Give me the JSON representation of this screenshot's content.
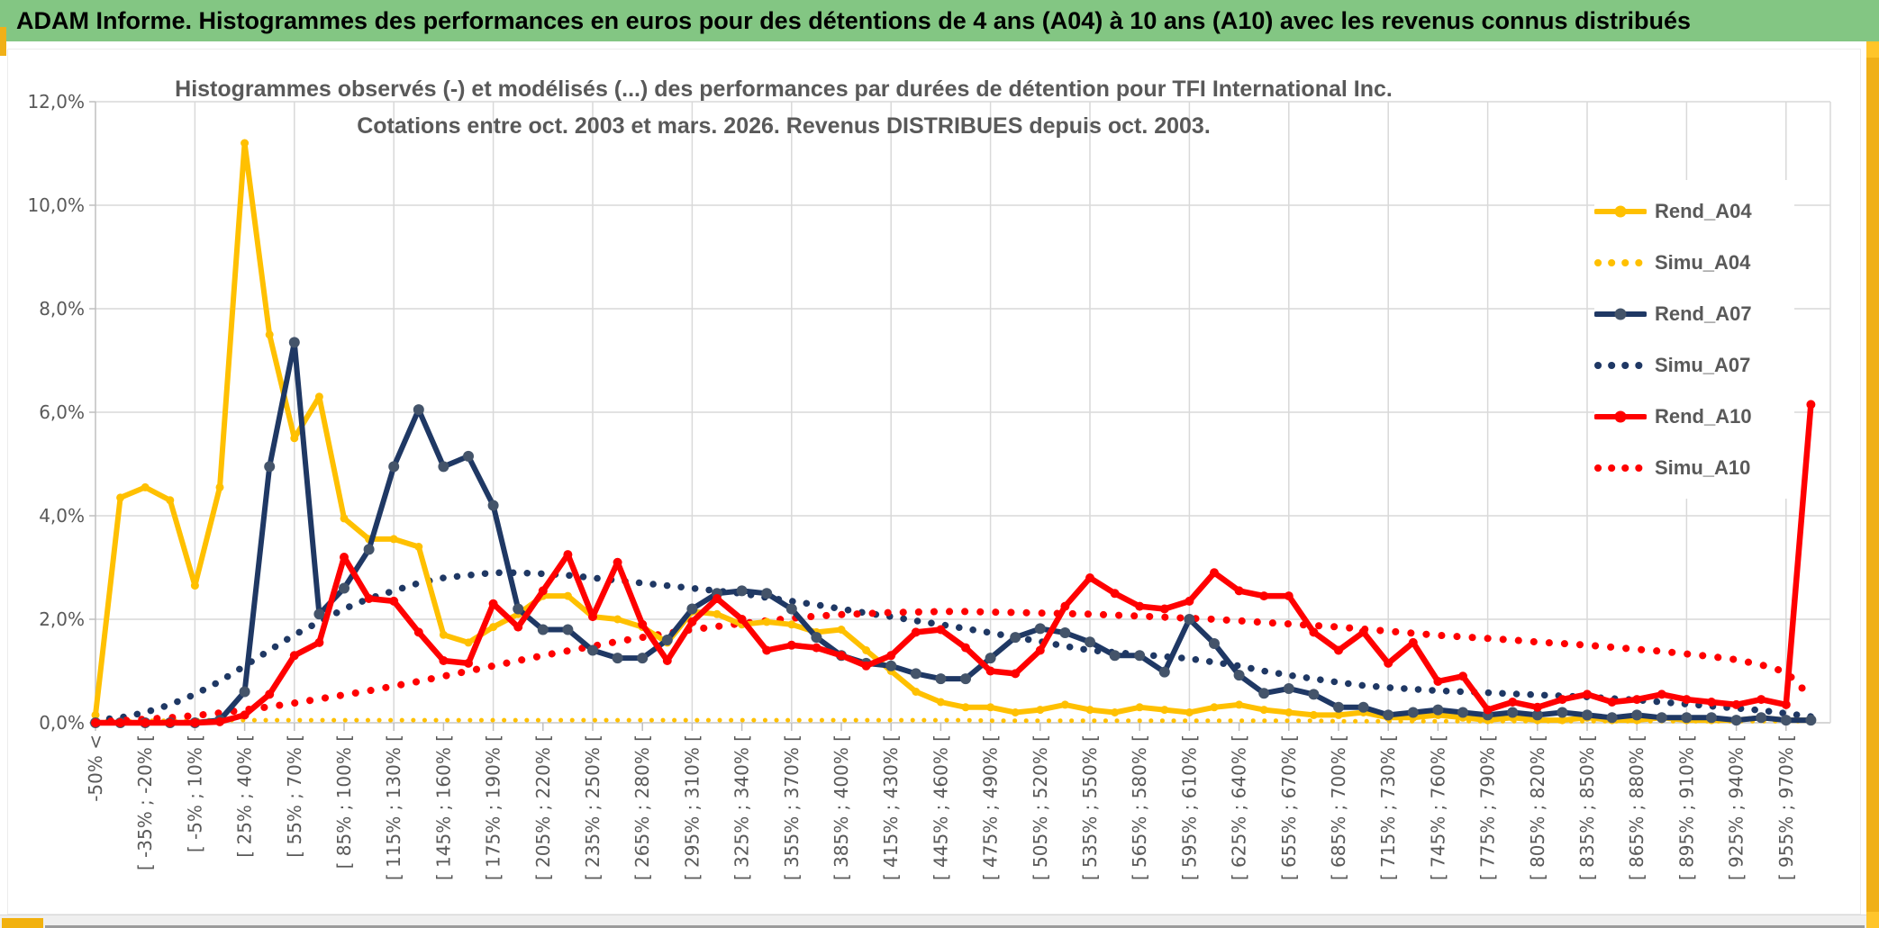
{
  "header": {
    "title": "ADAM Informe. Histogrammes des performances en euros pour des détentions de 4 ans (A04) à 10 ans (A10) avec les revenus connus distribués"
  },
  "colors": {
    "header_bg": "#83C683",
    "accent_gold": "#F0B018",
    "text_gray": "#595959",
    "gridline": "#D9D9D9",
    "axis": "#BFBFBF",
    "series_a04": "#FFC000",
    "series_a07": "#1F3864",
    "series_a07_marker": "#44546A",
    "series_a10": "#FF0000"
  },
  "chart_data": {
    "type": "line",
    "title": "Histogrammes observés (-) et modélisés (...) des performances par durées de détention pour TFI International Inc.",
    "subtitle": "Cotations entre oct. 2003 et mars. 2026. Revenus DISTRIBUES depuis oct. 2003.",
    "xlabel": "",
    "ylabel": "",
    "ylim": [
      0,
      12
    ],
    "grid": true,
    "legend_position": "right",
    "y_tick_labels": [
      "0,0%",
      "2,0%",
      "4,0%",
      "6,0%",
      "8,0%",
      "10,0%",
      "12,0%"
    ],
    "n_bins": 70,
    "x_label_every": 2,
    "x_tick_labels": [
      "-50% <",
      "[ -35% ; -20% [",
      "[ -5% ; 10% [",
      "[ 25% ; 40% [",
      "[ 55% ; 70% [",
      "[ 85% ; 100% [",
      "[ 115% ; 130% [",
      "[ 145% ; 160% [",
      "[ 175% ; 190% [",
      "[ 205% ; 220% [",
      "[ 235% ; 250% [",
      "[ 265% ; 280% [",
      "[ 295% ; 310% [",
      "[ 325% ; 340% [",
      "[ 355% ; 370% [",
      "[ 385% ; 400% [",
      "[ 415% ; 430% [",
      "[ 445% ; 460% [",
      "[ 475% ; 490% [",
      "[ 505% ; 520% [",
      "[ 535% ; 550% [",
      "[ 565% ; 580% [",
      "[ 595% ; 610% [",
      "[ 625% ; 640% [",
      "[ 655% ; 670% [",
      "[ 685% ; 700% [",
      "[ 715% ; 730% [",
      "[ 745% ; 760% [",
      "[ 775% ; 790% [",
      "[ 805% ; 820% [",
      "[ 835% ; 850% [",
      "[ 865% ; 880% [",
      "[ 895% ; 910% [",
      "[ 925% ; 940% [",
      "[ 955% ; 970% ["
    ],
    "series": [
      {
        "name": "Rend_A04",
        "style": "solid",
        "color": "#FFC000",
        "marker_color": "#FFC000",
        "values": [
          0.15,
          4.35,
          4.55,
          4.3,
          2.65,
          4.55,
          11.2,
          7.5,
          5.5,
          6.3,
          3.95,
          3.55,
          3.55,
          3.4,
          1.7,
          1.55,
          1.85,
          2.1,
          2.45,
          2.45,
          2.05,
          2.0,
          1.85,
          1.55,
          2.15,
          2.1,
          1.9,
          1.95,
          1.9,
          1.75,
          1.8,
          1.4,
          1.0,
          0.6,
          0.4,
          0.3,
          0.3,
          0.2,
          0.25,
          0.35,
          0.25,
          0.2,
          0.3,
          0.25,
          0.2,
          0.3,
          0.35,
          0.25,
          0.2,
          0.15,
          0.15,
          0.2,
          0.1,
          0.1,
          0.15,
          0.1,
          0.05,
          0.1,
          0.05,
          0.05,
          0.1,
          0.05,
          0.05,
          0.1,
          0.05,
          0.05,
          0.05,
          0.1,
          0.05,
          0.05
        ]
      },
      {
        "name": "Simu_A04",
        "style": "dotted",
        "color": "#FFC000",
        "marker_color": "#FFC000",
        "values": [
          0.03,
          0.03,
          0.04,
          0.04,
          0.05,
          0.05,
          0.05,
          0.05,
          0.05,
          0.05,
          0.05,
          0.05,
          0.05,
          0.05,
          0.05,
          0.05,
          0.05,
          0.05,
          0.05,
          0.05,
          0.05,
          0.05,
          0.05,
          0.05,
          0.05,
          0.05,
          0.05,
          0.05,
          0.05,
          0.05,
          0.05,
          0.05,
          0.05,
          0.05,
          0.05,
          0.05,
          0.04,
          0.04,
          0.04,
          0.04,
          0.04,
          0.04,
          0.04,
          0.04,
          0.04,
          0.04,
          0.04,
          0.04,
          0.04,
          0.04,
          0.03,
          0.03,
          0.03,
          0.03,
          0.03,
          0.03,
          0.03,
          0.03,
          0.03,
          0.03,
          0.03,
          0.03,
          0.03,
          0.03,
          0.03,
          0.03,
          0.03,
          0.03,
          0.03,
          0.03
        ]
      },
      {
        "name": "Rend_A07",
        "style": "solid",
        "color": "#1F3864",
        "marker_color": "#44546A",
        "values": [
          0,
          0,
          0,
          0,
          0,
          0.05,
          0.6,
          4.95,
          7.35,
          2.1,
          2.6,
          3.35,
          4.95,
          6.05,
          4.95,
          5.15,
          4.2,
          2.2,
          1.8,
          1.8,
          1.4,
          1.25,
          1.25,
          1.6,
          2.2,
          2.5,
          2.55,
          2.5,
          2.2,
          1.65,
          1.3,
          1.15,
          1.1,
          0.95,
          0.85,
          0.85,
          1.25,
          1.65,
          1.82,
          1.74,
          1.56,
          1.3,
          1.3,
          0.98,
          2.0,
          1.53,
          0.92,
          0.57,
          0.66,
          0.55,
          0.3,
          0.3,
          0.15,
          0.2,
          0.25,
          0.2,
          0.15,
          0.2,
          0.15,
          0.2,
          0.15,
          0.1,
          0.15,
          0.1,
          0.1,
          0.1,
          0.05,
          0.1,
          0.05,
          0.05
        ]
      },
      {
        "name": "Simu_A07",
        "style": "dotted",
        "color": "#1F3864",
        "marker_color": "#1F3864",
        "values": [
          0.05,
          0.1,
          0.2,
          0.35,
          0.55,
          0.8,
          1.1,
          1.4,
          1.7,
          1.95,
          2.2,
          2.4,
          2.55,
          2.7,
          2.8,
          2.85,
          2.9,
          2.9,
          2.88,
          2.85,
          2.8,
          2.75,
          2.7,
          2.65,
          2.6,
          2.55,
          2.5,
          2.42,
          2.35,
          2.28,
          2.2,
          2.12,
          2.05,
          1.97,
          1.9,
          1.82,
          1.74,
          1.65,
          1.57,
          1.48,
          1.4,
          1.36,
          1.32,
          1.28,
          1.24,
          1.17,
          1.1,
          1.0,
          0.92,
          0.85,
          0.78,
          0.72,
          0.68,
          0.65,
          0.62,
          0.6,
          0.58,
          0.56,
          0.54,
          0.52,
          0.5,
          0.47,
          0.44,
          0.4,
          0.36,
          0.32,
          0.28,
          0.24,
          0.18,
          0.12
        ]
      },
      {
        "name": "Rend_A10",
        "style": "solid",
        "color": "#FF0000",
        "marker_color": "#FF0000",
        "values": [
          0,
          0,
          0,
          0,
          0,
          0.02,
          0.15,
          0.55,
          1.3,
          1.55,
          3.2,
          2.4,
          2.35,
          1.75,
          1.2,
          1.15,
          2.3,
          1.85,
          2.55,
          3.25,
          2.05,
          3.1,
          1.9,
          1.2,
          1.95,
          2.4,
          2.0,
          1.4,
          1.5,
          1.45,
          1.3,
          1.1,
          1.3,
          1.75,
          1.8,
          1.45,
          1.0,
          0.95,
          1.4,
          2.25,
          2.8,
          2.5,
          2.25,
          2.2,
          2.35,
          2.9,
          2.55,
          2.45,
          2.45,
          1.75,
          1.4,
          1.75,
          1.15,
          1.55,
          0.8,
          0.9,
          0.25,
          0.4,
          0.3,
          0.45,
          0.55,
          0.4,
          0.45,
          0.55,
          0.45,
          0.4,
          0.35,
          0.45,
          0.35,
          6.15
        ]
      },
      {
        "name": "Simu_A10",
        "style": "dotted",
        "color": "#FF0000",
        "marker_color": "#FF0000",
        "values": [
          0.02,
          0.04,
          0.07,
          0.1,
          0.14,
          0.19,
          0.25,
          0.31,
          0.38,
          0.46,
          0.54,
          0.62,
          0.71,
          0.8,
          0.9,
          1.0,
          1.1,
          1.2,
          1.3,
          1.39,
          1.48,
          1.57,
          1.65,
          1.73,
          1.8,
          1.86,
          1.92,
          1.97,
          2.02,
          2.06,
          2.09,
          2.11,
          2.13,
          2.14,
          2.15,
          2.15,
          2.14,
          2.13,
          2.12,
          2.11,
          2.1,
          2.08,
          2.06,
          2.04,
          2.02,
          2.0,
          1.97,
          1.94,
          1.91,
          1.88,
          1.85,
          1.81,
          1.77,
          1.73,
          1.69,
          1.66,
          1.63,
          1.6,
          1.56,
          1.53,
          1.5,
          1.46,
          1.42,
          1.38,
          1.33,
          1.28,
          1.22,
          1.12,
          0.98,
          0.5
        ]
      }
    ]
  }
}
